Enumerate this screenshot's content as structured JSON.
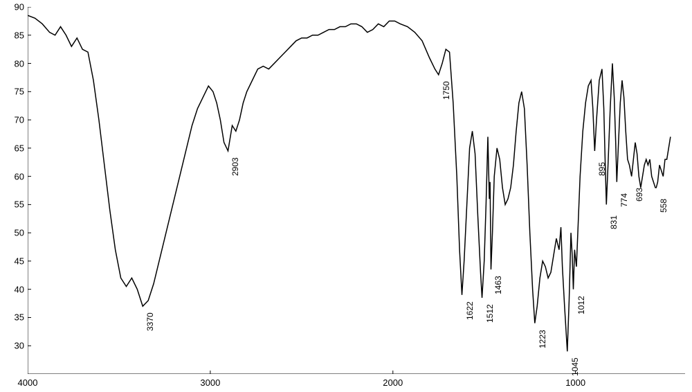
{
  "spectrum": {
    "type": "line",
    "x_axis": {
      "min": 4000,
      "max": 400,
      "ticks": [
        4000,
        3000,
        2000,
        1000
      ],
      "fontsize": 13
    },
    "y_axis": {
      "min": 25,
      "max": 90,
      "ticks": [
        30,
        35,
        40,
        45,
        50,
        55,
        60,
        65,
        70,
        75,
        80,
        85,
        90
      ],
      "fontsize": 13
    },
    "line_color": "#000000",
    "line_width": 1.5,
    "background_color": "#ffffff",
    "peak_labels": [
      {
        "wavenumber": 3370,
        "value": 37
      },
      {
        "wavenumber": 2903,
        "value": 64.5
      },
      {
        "wavenumber": 1750,
        "value": 78
      },
      {
        "wavenumber": 1622,
        "value": 39
      },
      {
        "wavenumber": 1512,
        "value": 38.5
      },
      {
        "wavenumber": 1463,
        "value": 43.5
      },
      {
        "wavenumber": 1223,
        "value": 34
      },
      {
        "wavenumber": 1045,
        "value": 29
      },
      {
        "wavenumber": 1012,
        "value": 40
      },
      {
        "wavenumber": 895,
        "value": 64.5
      },
      {
        "wavenumber": 831,
        "value": 55
      },
      {
        "wavenumber": 774,
        "value": 59
      },
      {
        "wavenumber": 693,
        "value": 60
      },
      {
        "wavenumber": 558,
        "value": 58
      }
    ],
    "peak_label_fontsize": 12,
    "data_points": [
      [
        4000,
        88.5
      ],
      [
        3960,
        88
      ],
      [
        3920,
        87
      ],
      [
        3880,
        85.5
      ],
      [
        3850,
        85
      ],
      [
        3820,
        86.5
      ],
      [
        3790,
        85
      ],
      [
        3760,
        83
      ],
      [
        3730,
        84.5
      ],
      [
        3700,
        82.5
      ],
      [
        3670,
        82
      ],
      [
        3640,
        77
      ],
      [
        3610,
        70
      ],
      [
        3580,
        62
      ],
      [
        3550,
        54
      ],
      [
        3520,
        47
      ],
      [
        3490,
        42
      ],
      [
        3460,
        40.5
      ],
      [
        3430,
        42
      ],
      [
        3400,
        40
      ],
      [
        3370,
        37
      ],
      [
        3340,
        38
      ],
      [
        3310,
        41
      ],
      [
        3280,
        45
      ],
      [
        3250,
        49
      ],
      [
        3220,
        53
      ],
      [
        3190,
        57
      ],
      [
        3160,
        61
      ],
      [
        3130,
        65
      ],
      [
        3100,
        69
      ],
      [
        3070,
        72
      ],
      [
        3040,
        74
      ],
      [
        3010,
        76
      ],
      [
        2985,
        75
      ],
      [
        2965,
        73
      ],
      [
        2945,
        70
      ],
      [
        2925,
        66
      ],
      [
        2903,
        64.5
      ],
      [
        2880,
        69
      ],
      [
        2860,
        68
      ],
      [
        2840,
        70
      ],
      [
        2820,
        73
      ],
      [
        2800,
        75
      ],
      [
        2770,
        77
      ],
      [
        2740,
        79
      ],
      [
        2710,
        79.5
      ],
      [
        2680,
        79
      ],
      [
        2650,
        80
      ],
      [
        2620,
        81
      ],
      [
        2590,
        82
      ],
      [
        2560,
        83
      ],
      [
        2530,
        84
      ],
      [
        2500,
        84.5
      ],
      [
        2470,
        84.5
      ],
      [
        2440,
        85
      ],
      [
        2410,
        85
      ],
      [
        2380,
        85.5
      ],
      [
        2350,
        86
      ],
      [
        2320,
        86
      ],
      [
        2290,
        86.5
      ],
      [
        2260,
        86.5
      ],
      [
        2230,
        87
      ],
      [
        2200,
        87
      ],
      [
        2170,
        86.5
      ],
      [
        2140,
        85.5
      ],
      [
        2110,
        86
      ],
      [
        2080,
        87
      ],
      [
        2050,
        86.5
      ],
      [
        2020,
        87.5
      ],
      [
        1990,
        87.5
      ],
      [
        1960,
        87
      ],
      [
        1920,
        86.5
      ],
      [
        1880,
        85.5
      ],
      [
        1840,
        84
      ],
      [
        1800,
        81
      ],
      [
        1770,
        79
      ],
      [
        1750,
        78
      ],
      [
        1730,
        80
      ],
      [
        1710,
        82.5
      ],
      [
        1690,
        82
      ],
      [
        1670,
        73
      ],
      [
        1650,
        60
      ],
      [
        1635,
        47
      ],
      [
        1622,
        39
      ],
      [
        1610,
        45
      ],
      [
        1595,
        55
      ],
      [
        1580,
        65
      ],
      [
        1565,
        68
      ],
      [
        1550,
        64
      ],
      [
        1535,
        53
      ],
      [
        1520,
        43
      ],
      [
        1512,
        38.5
      ],
      [
        1500,
        45
      ],
      [
        1490,
        55
      ],
      [
        1480,
        67
      ],
      [
        1472,
        56
      ],
      [
        1468,
        59
      ],
      [
        1463,
        43.5
      ],
      [
        1455,
        50
      ],
      [
        1445,
        60
      ],
      [
        1430,
        65
      ],
      [
        1415,
        63
      ],
      [
        1400,
        58
      ],
      [
        1385,
        55
      ],
      [
        1370,
        56
      ],
      [
        1355,
        58
      ],
      [
        1340,
        62
      ],
      [
        1325,
        68
      ],
      [
        1310,
        73
      ],
      [
        1295,
        75
      ],
      [
        1280,
        72
      ],
      [
        1265,
        62
      ],
      [
        1250,
        50
      ],
      [
        1235,
        40
      ],
      [
        1223,
        34
      ],
      [
        1210,
        37
      ],
      [
        1195,
        42
      ],
      [
        1180,
        45
      ],
      [
        1165,
        44
      ],
      [
        1150,
        42
      ],
      [
        1135,
        43
      ],
      [
        1120,
        46
      ],
      [
        1105,
        49
      ],
      [
        1090,
        47
      ],
      [
        1080,
        51
      ],
      [
        1072,
        44
      ],
      [
        1060,
        37
      ],
      [
        1045,
        29
      ],
      [
        1035,
        38
      ],
      [
        1025,
        50
      ],
      [
        1018,
        46
      ],
      [
        1012,
        40
      ],
      [
        1005,
        47
      ],
      [
        995,
        44
      ],
      [
        985,
        52
      ],
      [
        975,
        60
      ],
      [
        960,
        68
      ],
      [
        945,
        73
      ],
      [
        930,
        76
      ],
      [
        915,
        77
      ],
      [
        905,
        72
      ],
      [
        895,
        64.5
      ],
      [
        885,
        70
      ],
      [
        870,
        77
      ],
      [
        855,
        79
      ],
      [
        845,
        72
      ],
      [
        838,
        63
      ],
      [
        831,
        55
      ],
      [
        822,
        62
      ],
      [
        810,
        72
      ],
      [
        798,
        80
      ],
      [
        788,
        74
      ],
      [
        780,
        66
      ],
      [
        774,
        59
      ],
      [
        766,
        65
      ],
      [
        755,
        73
      ],
      [
        745,
        77
      ],
      [
        735,
        74
      ],
      [
        725,
        68
      ],
      [
        715,
        63
      ],
      [
        705,
        62
      ],
      [
        693,
        60
      ],
      [
        683,
        63
      ],
      [
        673,
        66
      ],
      [
        663,
        64
      ],
      [
        653,
        60
      ],
      [
        643,
        58
      ],
      [
        633,
        60
      ],
      [
        623,
        62
      ],
      [
        613,
        63
      ],
      [
        603,
        62
      ],
      [
        593,
        63
      ],
      [
        583,
        60
      ],
      [
        573,
        59
      ],
      [
        563,
        58
      ],
      [
        558,
        58
      ],
      [
        550,
        59
      ],
      [
        540,
        62
      ],
      [
        530,
        61
      ],
      [
        520,
        60
      ],
      [
        510,
        63
      ],
      [
        500,
        63
      ],
      [
        490,
        65
      ],
      [
        480,
        67
      ]
    ]
  }
}
